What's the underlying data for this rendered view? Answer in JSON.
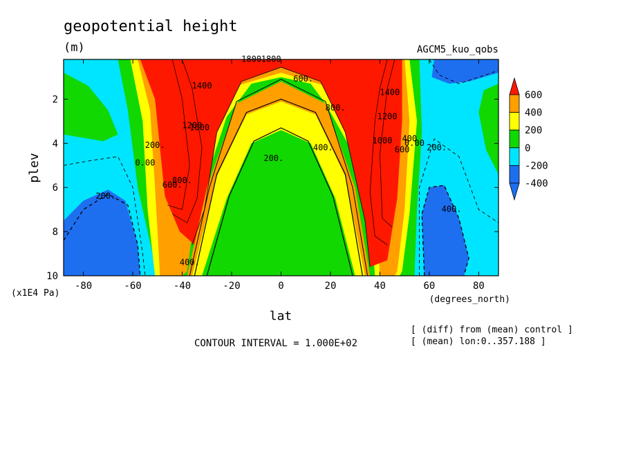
{
  "chart_data": {
    "type": "heatmap",
    "title": "geopotential height",
    "units": "(m)",
    "dataset": "AGCM5_kuo_qobs",
    "xlabel": "lat",
    "x_units": "(degrees_north)",
    "ylabel": "plev",
    "y_units": "(x1E4 Pa)",
    "xlim": [
      -88,
      88
    ],
    "ylim": [
      10,
      0.2
    ],
    "x_ticks": [
      -80,
      -60,
      -40,
      -20,
      0,
      20,
      40,
      60,
      80
    ],
    "x_tick_labels": [
      "-80",
      "-60",
      "-40",
      "-20",
      "0",
      "20",
      "40",
      "60",
      "80"
    ],
    "y_ticks": [
      2,
      4,
      6,
      8,
      10
    ],
    "y_tick_labels": [
      "2",
      "4",
      "6",
      "8",
      "10"
    ],
    "contour_interval_text": "CONTOUR INTERVAL = 1.000E+02",
    "notes": [
      "[ (diff) from (mean) control ]",
      "[ (mean) lon:0..357.188 ]"
    ],
    "colorbar": {
      "labels": [
        "600",
        "400",
        "200",
        "0",
        "-200",
        "-400"
      ],
      "levels": [
        -400,
        -200,
        0,
        200,
        400,
        600
      ],
      "colors": [
        "#1e6ff0",
        "#00e5ff",
        "#10d800",
        "#ffff00",
        "#ff9f00",
        "#ff1800"
      ]
    },
    "contour_labels": [
      {
        "text": "1800",
        "lat": -12,
        "p": 0.2
      },
      {
        "text": "1800",
        "lat": -4,
        "p": 0.2
      },
      {
        "text": "1400",
        "lat": -32,
        "p": 1.4
      },
      {
        "text": "1200",
        "lat": -36,
        "p": 3.2
      },
      {
        "text": "1000",
        "lat": -33,
        "p": 3.3
      },
      {
        "text": "800.",
        "lat": -40,
        "p": 5.7
      },
      {
        "text": "600.",
        "lat": -44,
        "p": 5.9
      },
      {
        "text": "200.",
        "lat": -51,
        "p": 4.1
      },
      {
        "text": "0.00",
        "lat": -55,
        "p": 4.9
      },
      {
        "text": "200.",
        "lat": -71,
        "p": 6.4
      },
      {
        "text": "400.",
        "lat": -37,
        "p": 9.4
      },
      {
        "text": "200.",
        "lat": -3,
        "p": 4.7
      },
      {
        "text": "400.",
        "lat": 17,
        "p": 4.2
      },
      {
        "text": "600.",
        "lat": 9,
        "p": 1.1
      },
      {
        "text": "800.",
        "lat": 22,
        "p": 2.4
      },
      {
        "text": "1000",
        "lat": 41,
        "p": 3.9
      },
      {
        "text": "1200",
        "lat": 43,
        "p": 2.8
      },
      {
        "text": "1400",
        "lat": 44,
        "p": 1.7
      },
      {
        "text": "600",
        "lat": 49,
        "p": 4.3
      },
      {
        "text": "400",
        "lat": 52,
        "p": 3.8
      },
      {
        "text": "0.00",
        "lat": 54,
        "p": 4.0
      },
      {
        "text": "200.",
        "lat": 63,
        "p": 4.2
      },
      {
        "text": "400.",
        "lat": 69,
        "p": 7.0
      }
    ]
  }
}
